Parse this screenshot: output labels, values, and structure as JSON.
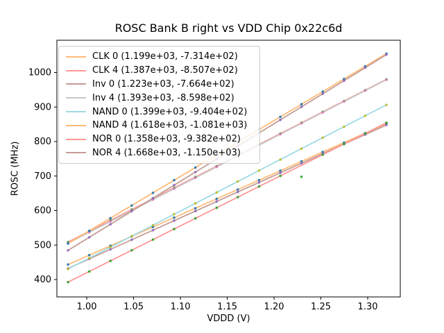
{
  "chart_data": {
    "type": "scatter",
    "title": "ROSC Bank B right vs VDD Chip 0x22c6d",
    "xlabel": "VDDD (V)",
    "ylabel": "ROSC (MHz)",
    "xlim": [
      0.9681,
      1.3348
    ],
    "ylim": [
      349.7,
      1093.5
    ],
    "xticks": [
      1.0,
      1.05,
      1.1,
      1.15,
      1.2,
      1.25,
      1.3
    ],
    "xtick_labels": [
      "1.00",
      "1.05",
      "1.10",
      "1.15",
      "1.20",
      "1.25",
      "1.30"
    ],
    "yticks": [
      400,
      500,
      600,
      700,
      800,
      900,
      1000
    ],
    "grid": false,
    "legend_position": "upper-left",
    "x": [
      0.98,
      1.0027,
      1.0253,
      1.048,
      1.0707,
      1.0933,
      1.116,
      1.1387,
      1.1613,
      1.184,
      1.2067,
      1.2293,
      1.252,
      1.2747,
      1.2973,
      1.32
    ],
    "fit_x_range": [
      0.98,
      1.32
    ],
    "series": [
      {
        "name": "CLK 0",
        "legend_label": "CLK 0 (1.199e+03, -7.314e+02)",
        "fit_slope": 1199,
        "fit_intercept": -731.4,
        "line_color": "#ffbb78",
        "marker_color": "#1f77b4",
        "points": [
          443.6,
          470.8,
          498.0,
          525.2,
          552.3,
          579.5,
          606.7,
          633.9,
          661.0,
          688.2,
          715.4,
          742.6,
          769.7,
          796.9,
          824.1,
          851.3
        ]
      },
      {
        "name": "CLK 4",
        "legend_label": "CLK 4 (1.387e+03, -8.507e+02)",
        "fit_slope": 1387,
        "fit_intercept": -850.7,
        "line_color": "#ff9896",
        "marker_color": "#2ca02c",
        "points": [
          508.6,
          540.0,
          571.4,
          602.9,
          634.3,
          665.8,
          697.2,
          728.6,
          760.1,
          791.5,
          823.0,
          854.4,
          885.8,
          917.3,
          948.7,
          980.1
        ]
      },
      {
        "name": "Inv 0",
        "legend_label": "Inv 0 (1.223e+03, -7.664e+02)",
        "fit_slope": 1223,
        "fit_intercept": -766.4,
        "line_color": "#c49c94",
        "marker_color": "#9467bd",
        "points": [
          432.1,
          459.9,
          487.6,
          515.3,
          543.0,
          570.8,
          598.5,
          626.2,
          653.9,
          681.6,
          709.4,
          737.1,
          764.8,
          792.5,
          820.2,
          848.0
        ]
      },
      {
        "name": "Inv 4",
        "legend_label": "Inv 4 (1.393e+03, -8.598e+02)",
        "fit_slope": 1393,
        "fit_intercept": -859.8,
        "line_color": "#c7c7c7",
        "marker_color": "#e377c2",
        "points": [
          505.3,
          536.9,
          568.5,
          600.1,
          631.6,
          663.2,
          694.8,
          726.4,
          757.9,
          789.5,
          821.1,
          852.7,
          884.2,
          915.8,
          947.4,
          979.0
        ]
      },
      {
        "name": "NAND 0",
        "legend_label": "NAND 0 (1.399e+03, -9.404e+02)",
        "fit_slope": 1399,
        "fit_intercept": -940.4,
        "line_color": "#9edae5",
        "marker_color": "#bcbd22",
        "points": [
          430.6,
          462.3,
          494.0,
          525.8,
          557.5,
          589.2,
          620.9,
          652.6,
          684.3,
          716.0,
          747.7,
          779.4,
          811.2,
          842.9,
          874.6,
          906.3
        ]
      },
      {
        "name": "NAND 4",
        "legend_label": "NAND 4 (1.618e+03, -1.081e+03)",
        "fit_slope": 1618,
        "fit_intercept": -1081,
        "line_color": "#ffbb78",
        "marker_color": "#1f77b4",
        "points": [
          504.6,
          541.3,
          578.0,
          614.7,
          651.3,
          688.0,
          724.7,
          761.4,
          798.0,
          834.7,
          871.4,
          908.1,
          944.7,
          981.4,
          1018.1,
          1054.8
        ]
      },
      {
        "name": "NOR 0",
        "legend_label": "NOR 0 (1.358e+03, -9.382e+02)",
        "fit_slope": 1358,
        "fit_intercept": -938.2,
        "line_color": "#ff9896",
        "marker_color": "#2ca02c",
        "points": [
          392.6,
          423.4,
          454.2,
          485.0,
          515.8,
          546.5,
          577.3,
          608.1,
          638.9,
          669.7,
          700.5,
          698.0,
          762.0,
          792.8,
          823.6,
          854.4
        ]
      },
      {
        "name": "NOR 4",
        "legend_label": "NOR 4 (1.668e+03, -1.150e+03)",
        "fit_slope": 1668,
        "fit_intercept": -1150,
        "line_color": "#c49c94",
        "marker_color": "#9467bd",
        "points": [
          484.6,
          522.5,
          560.3,
          598.1,
          635.9,
          673.7,
          711.5,
          749.3,
          787.1,
          824.9,
          862.7,
          900.5,
          938.3,
          976.1,
          1014.0,
          1051.8
        ]
      }
    ]
  }
}
